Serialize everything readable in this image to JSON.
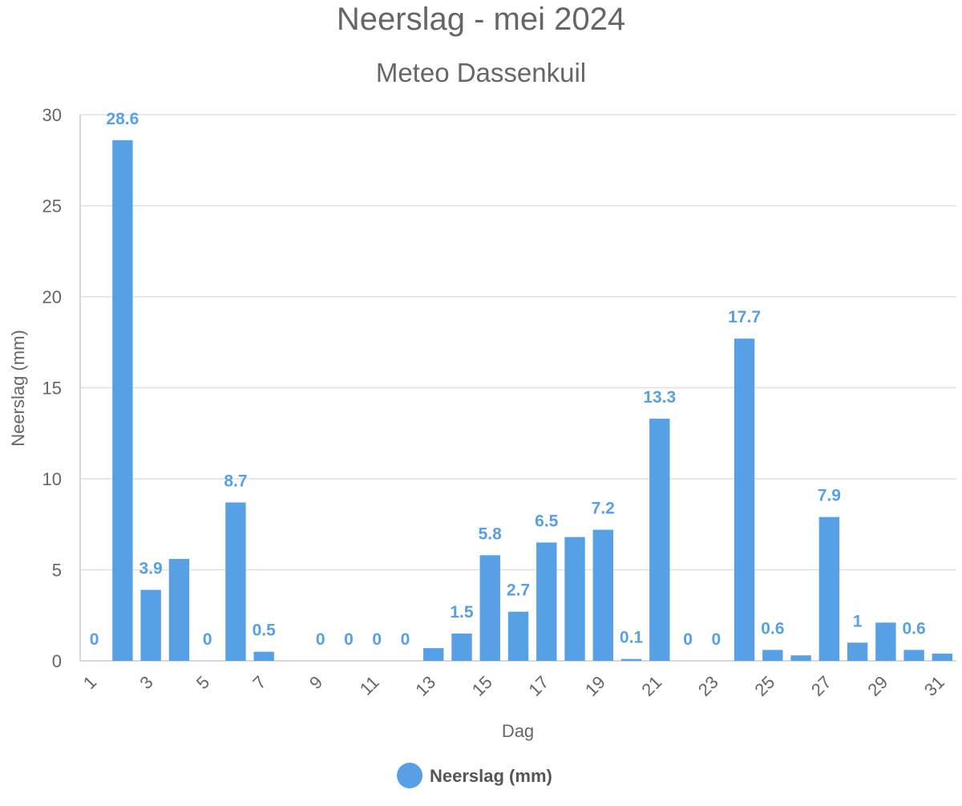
{
  "chart_data": {
    "type": "bar",
    "title": "Neerslag - mei 2024",
    "subtitle": "Meteo Dassenkuil",
    "xlabel": "Dag",
    "ylabel": "Neerslag (mm)",
    "ylim": [
      0,
      30
    ],
    "yticks": [
      0,
      5,
      10,
      15,
      20,
      25,
      30
    ],
    "categories": [
      "1",
      "2",
      "3",
      "4",
      "5",
      "6",
      "7",
      "8",
      "9",
      "10",
      "11",
      "12",
      "13",
      "14",
      "15",
      "16",
      "17",
      "18",
      "19",
      "20",
      "21",
      "22",
      "23",
      "24",
      "25",
      "26",
      "27",
      "28",
      "29",
      "30",
      "31"
    ],
    "x_tick_labels": [
      "1",
      "3",
      "5",
      "7",
      "9",
      "11",
      "13",
      "15",
      "17",
      "19",
      "21",
      "23",
      "25",
      "27",
      "29",
      "31"
    ],
    "series": [
      {
        "name": "Neerslag (mm)",
        "color": "#57a0e5",
        "values": [
          0,
          28.6,
          3.9,
          5.6,
          0,
          8.7,
          0.5,
          0,
          0,
          0,
          0,
          0,
          0.7,
          1.5,
          5.8,
          2.7,
          6.5,
          6.8,
          7.2,
          0.1,
          13.3,
          0,
          0,
          17.7,
          0.6,
          0.3,
          7.9,
          1,
          2.1,
          0.6,
          0.4
        ]
      }
    ],
    "data_labels": [
      {
        "day": "1",
        "text": "0"
      },
      {
        "day": "2",
        "text": "28.6"
      },
      {
        "day": "3",
        "text": "3.9"
      },
      {
        "day": "5",
        "text": "0"
      },
      {
        "day": "6",
        "text": "8.7"
      },
      {
        "day": "7",
        "text": "0.5"
      },
      {
        "day": "9",
        "text": "0"
      },
      {
        "day": "10",
        "text": "0"
      },
      {
        "day": "11",
        "text": "0"
      },
      {
        "day": "12",
        "text": "0"
      },
      {
        "day": "14",
        "text": "1.5"
      },
      {
        "day": "15",
        "text": "5.8"
      },
      {
        "day": "16",
        "text": "2.7"
      },
      {
        "day": "17",
        "text": "6.5"
      },
      {
        "day": "19",
        "text": "7.2"
      },
      {
        "day": "20",
        "text": "0.1"
      },
      {
        "day": "21",
        "text": "13.3"
      },
      {
        "day": "22",
        "text": "0"
      },
      {
        "day": "23",
        "text": "0"
      },
      {
        "day": "24",
        "text": "17.7"
      },
      {
        "day": "25",
        "text": "0.6"
      },
      {
        "day": "27",
        "text": "7.9"
      },
      {
        "day": "28",
        "text": "1"
      },
      {
        "day": "30",
        "text": "0.6"
      }
    ],
    "grid": true,
    "legend_position": "bottom-center"
  }
}
